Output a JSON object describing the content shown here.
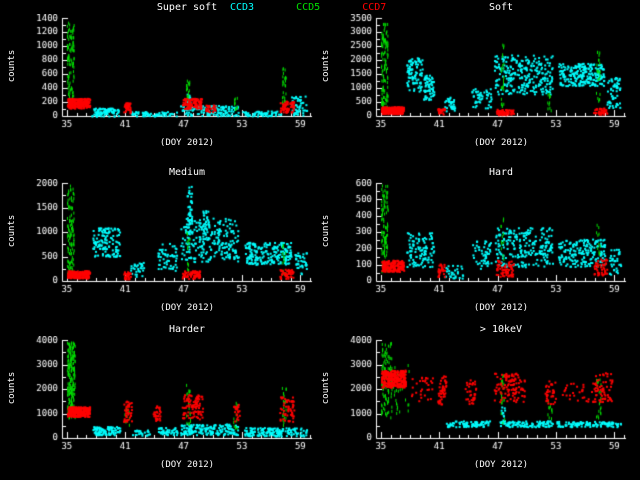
{
  "legend": {
    "items": [
      {
        "label": "CCD3",
        "color": "#00FFFF"
      },
      {
        "label": "CCD5",
        "color": "#00E000"
      },
      {
        "label": "CCD7",
        "color": "#FF0000"
      }
    ]
  },
  "chart_data": [
    {
      "type": "scatter",
      "title": "Super soft",
      "xlabel": "(DOY 2012)",
      "ylabel": "counts",
      "xlim": [
        34.5,
        60.2
      ],
      "ylim": [
        0,
        1400
      ],
      "xticks": [
        35,
        41,
        47,
        53,
        59
      ],
      "yticks": [
        0,
        200,
        400,
        600,
        800,
        1000,
        1200,
        1400
      ],
      "series": [
        {
          "name": "CCD3",
          "color": "#00FFFF",
          "marker": "dot",
          "clusters": [
            [
              37.5,
              40.3,
              5,
              120,
              90
            ],
            [
              41.5,
              46.3,
              5,
              70,
              70
            ],
            [
              46.6,
              52.6,
              10,
              160,
              140
            ],
            [
              47.3,
              47.7,
              100,
              320,
              20
            ],
            [
              53.0,
              57.0,
              5,
              80,
              60
            ],
            [
              58.0,
              59.6,
              20,
              300,
              50
            ]
          ]
        },
        {
          "name": "CCD5",
          "color": "#00E000",
          "marker": "vdash",
          "clusters": [
            [
              35.0,
              35.7,
              150,
              1350,
              110
            ],
            [
              47.25,
              47.6,
              120,
              520,
              22
            ],
            [
              52.1,
              52.5,
              80,
              300,
              10
            ],
            [
              57.1,
              57.5,
              120,
              700,
              26
            ]
          ]
        },
        {
          "name": "CCD7",
          "color": "#FF0000",
          "marker": "dot",
          "clusters": [
            [
              35.0,
              37.3,
              120,
              260,
              240
            ],
            [
              40.8,
              41.5,
              50,
              200,
              35
            ],
            [
              46.8,
              48.8,
              110,
              260,
              110
            ],
            [
              49.2,
              50.2,
              60,
              180,
              25
            ],
            [
              56.8,
              58.3,
              60,
              230,
              60
            ]
          ]
        }
      ]
    },
    {
      "type": "scatter",
      "title": "Soft",
      "xlabel": "(DOY 2012)",
      "ylabel": "counts",
      "xlim": [
        34.5,
        60.2
      ],
      "ylim": [
        0,
        3500
      ],
      "xticks": [
        35,
        41,
        47,
        53,
        59
      ],
      "yticks": [
        0,
        500,
        1000,
        1500,
        2000,
        2500,
        3000,
        3500
      ],
      "series": [
        {
          "name": "CCD3",
          "color": "#00FFFF",
          "marker": "dot",
          "clusters": [
            [
              37.6,
              39.2,
              900,
              2100,
              90
            ],
            [
              39.3,
              40.4,
              600,
              1500,
              60
            ],
            [
              41.5,
              42.6,
              200,
              700,
              35
            ],
            [
              44.3,
              46.3,
              300,
              1000,
              50
            ],
            [
              46.6,
              52.6,
              800,
              2200,
              260
            ],
            [
              53.2,
              57.9,
              1100,
              1900,
              230
            ],
            [
              58.2,
              59.6,
              300,
              1400,
              60
            ]
          ]
        },
        {
          "name": "CCD5",
          "color": "#00E000",
          "marker": "vdash",
          "clusters": [
            [
              35.0,
              35.7,
              200,
              3300,
              120
            ],
            [
              47.25,
              47.6,
              300,
              2600,
              24
            ],
            [
              52.1,
              52.5,
              200,
              900,
              10
            ],
            [
              57.1,
              57.5,
              300,
              2300,
              22
            ]
          ]
        },
        {
          "name": "CCD7",
          "color": "#FF0000",
          "marker": "dot",
          "clusters": [
            [
              35.0,
              37.3,
              100,
              350,
              220
            ],
            [
              40.8,
              41.5,
              80,
              300,
              30
            ],
            [
              46.8,
              48.6,
              60,
              260,
              80
            ],
            [
              56.8,
              58.2,
              80,
              300,
              45
            ]
          ]
        }
      ]
    },
    {
      "type": "scatter",
      "title": "Medium",
      "xlabel": "(DOY 2012)",
      "ylabel": "counts",
      "xlim": [
        34.5,
        60.2
      ],
      "ylim": [
        0,
        2000
      ],
      "xticks": [
        35,
        41,
        47,
        53,
        59
      ],
      "yticks": [
        0,
        500,
        1000,
        1500,
        2000
      ],
      "series": [
        {
          "name": "CCD3",
          "color": "#00FFFF",
          "marker": "dot",
          "clusters": [
            [
              37.6,
              40.4,
              500,
              1100,
              130
            ],
            [
              41.5,
              43.0,
              100,
              400,
              30
            ],
            [
              44.3,
              46.3,
              200,
              800,
              55
            ],
            [
              46.6,
              52.6,
              400,
              1300,
              240
            ],
            [
              47.3,
              47.8,
              900,
              1950,
              45
            ],
            [
              48.9,
              49.5,
              800,
              1500,
              30
            ],
            [
              53.2,
              58.0,
              350,
              800,
              200
            ],
            [
              58.3,
              59.6,
              150,
              600,
              40
            ]
          ]
        },
        {
          "name": "CCD5",
          "color": "#00E000",
          "marker": "vdash",
          "clusters": [
            [
              35.0,
              35.7,
              100,
              1950,
              120
            ],
            [
              47.25,
              47.6,
              200,
              1000,
              14
            ],
            [
              57.1,
              57.5,
              150,
              900,
              14
            ]
          ]
        },
        {
          "name": "CCD7",
          "color": "#FF0000",
          "marker": "dot",
          "clusters": [
            [
              35.0,
              37.3,
              70,
              220,
              200
            ],
            [
              40.8,
              41.5,
              50,
              200,
              30
            ],
            [
              46.8,
              48.6,
              60,
              220,
              75
            ],
            [
              56.8,
              58.2,
              60,
              250,
              45
            ]
          ]
        }
      ]
    },
    {
      "type": "scatter",
      "title": "Hard",
      "xlabel": "(DOY 2012)",
      "ylabel": "counts",
      "xlim": [
        34.5,
        60.2
      ],
      "ylim": [
        0,
        600
      ],
      "xticks": [
        35,
        41,
        47,
        53,
        59
      ],
      "yticks": [
        0,
        100,
        200,
        300,
        400,
        500,
        600
      ],
      "series": [
        {
          "name": "CCD3",
          "color": "#00FFFF",
          "marker": "dot",
          "clusters": [
            [
              37.6,
              40.4,
              90,
              300,
              110
            ],
            [
              41.5,
              43.5,
              20,
              100,
              30
            ],
            [
              44.3,
              46.3,
              80,
              250,
              50
            ],
            [
              46.6,
              52.6,
              90,
              330,
              220
            ],
            [
              53.2,
              58.0,
              90,
              260,
              180
            ],
            [
              58.3,
              59.6,
              40,
              200,
              35
            ]
          ]
        },
        {
          "name": "CCD5",
          "color": "#00E000",
          "marker": "vdash",
          "clusters": [
            [
              35.0,
              35.7,
              50,
              590,
              110
            ],
            [
              47.25,
              47.6,
              100,
              400,
              12
            ],
            [
              57.1,
              57.5,
              80,
              350,
              12
            ]
          ]
        },
        {
          "name": "CCD7",
          "color": "#FF0000",
          "marker": "dot",
          "clusters": [
            [
              35.0,
              37.3,
              60,
              130,
              200
            ],
            [
              40.8,
              41.5,
              30,
              110,
              28
            ],
            [
              46.8,
              48.6,
              30,
              130,
              70
            ],
            [
              56.8,
              58.2,
              40,
              140,
              45
            ]
          ]
        }
      ]
    },
    {
      "type": "scatter",
      "title": "Harder",
      "xlabel": "(DOY 2012)",
      "ylabel": "counts",
      "xlim": [
        34.5,
        60.2
      ],
      "ylim": [
        0,
        4000
      ],
      "xticks": [
        35,
        41,
        47,
        53,
        59
      ],
      "yticks": [
        0,
        1000,
        2000,
        3000,
        4000
      ],
      "series": [
        {
          "name": "CCD3",
          "color": "#00FFFF",
          "marker": "dot",
          "clusters": [
            [
              37.6,
              40.4,
              150,
              500,
              90
            ],
            [
              41.6,
              43.5,
              100,
              350,
              25
            ],
            [
              44.3,
              46.3,
              150,
              450,
              45
            ],
            [
              46.6,
              52.6,
              150,
              600,
              180
            ],
            [
              53.2,
              59.6,
              100,
              450,
              160
            ]
          ]
        },
        {
          "name": "CCD5",
          "color": "#00E000",
          "marker": "vdash",
          "clusters": [
            [
              35.0,
              35.8,
              800,
              3900,
              200
            ],
            [
              40.9,
              41.4,
              500,
              1200,
              10
            ],
            [
              47.25,
              47.7,
              500,
              2200,
              20
            ],
            [
              52.1,
              52.5,
              400,
              1500,
              12
            ],
            [
              57.1,
              57.5,
              400,
              2100,
              20
            ]
          ]
        },
        {
          "name": "CCD7",
          "color": "#FF0000",
          "marker": "dot",
          "clusters": [
            [
              35.0,
              37.3,
              900,
              1300,
              240
            ],
            [
              40.8,
              41.6,
              700,
              1600,
              40
            ],
            [
              43.8,
              44.6,
              700,
              1400,
              28
            ],
            [
              46.8,
              48.9,
              800,
              1800,
              95
            ],
            [
              52.0,
              52.7,
              700,
              1400,
              24
            ],
            [
              56.8,
              58.3,
              700,
              1700,
              55
            ]
          ]
        }
      ]
    },
    {
      "type": "scatter",
      "title": "> 10keV",
      "xlabel": "(DOY 2012)",
      "ylabel": "counts",
      "xlim": [
        34.5,
        60.2
      ],
      "ylim": [
        0,
        4000
      ],
      "xticks": [
        35,
        41,
        47,
        53,
        59
      ],
      "yticks": [
        0,
        1000,
        2000,
        3000,
        4000
      ],
      "series": [
        {
          "name": "CCD3",
          "color": "#00FFFF",
          "marker": "dot",
          "clusters": [
            [
              41.6,
              46.4,
              480,
              720,
              80
            ],
            [
              47.0,
              52.6,
              480,
              720,
              95
            ],
            [
              47.3,
              47.7,
              600,
              1400,
              15
            ],
            [
              53.0,
              59.6,
              480,
              700,
              110
            ]
          ]
        },
        {
          "name": "CCD5",
          "color": "#00E000",
          "marker": "vdash",
          "clusters": [
            [
              35.0,
              36.1,
              800,
              3900,
              110
            ],
            [
              36.2,
              38.0,
              1000,
              3000,
              25
            ],
            [
              47.25,
              47.7,
              600,
              2600,
              22
            ],
            [
              52.1,
              52.6,
              500,
              1500,
              10
            ],
            [
              57.1,
              57.6,
              600,
              2400,
              22
            ]
          ]
        },
        {
          "name": "CCD7",
          "color": "#FF0000",
          "marker": "dot",
          "clusters": [
            [
              35.0,
              37.5,
              2100,
              2800,
              300
            ],
            [
              38.0,
              40.4,
              1500,
              2500,
              30
            ],
            [
              40.8,
              41.7,
              1400,
              2600,
              45
            ],
            [
              43.6,
              44.7,
              1400,
              2400,
              35
            ],
            [
              46.6,
              49.7,
              1500,
              2700,
              110
            ],
            [
              51.8,
              52.9,
              1400,
              2400,
              35
            ],
            [
              53.5,
              56.4,
              1500,
              2300,
              25
            ],
            [
              56.6,
              58.7,
              1500,
              2700,
              70
            ]
          ]
        }
      ]
    }
  ]
}
